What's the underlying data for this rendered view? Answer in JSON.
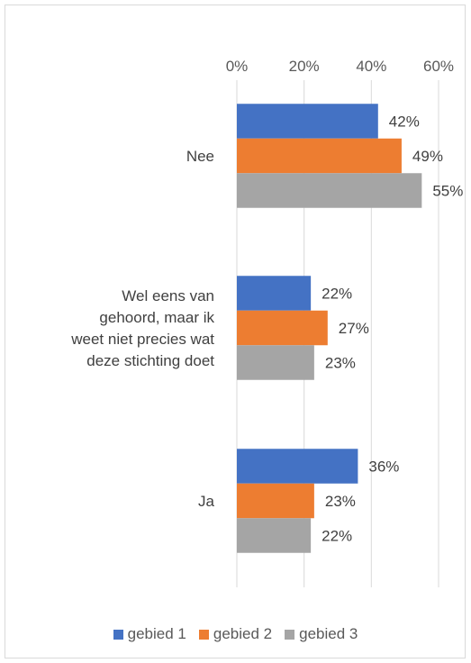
{
  "chart_data": {
    "type": "bar",
    "orientation": "horizontal",
    "categories": [
      "Nee",
      "Wel eens van gehoord, maar ik weet niet precies wat deze stichting doet",
      "Ja"
    ],
    "category_label_lines": [
      [
        "Nee"
      ],
      [
        "Wel eens van",
        "gehoord, maar ik",
        "weet niet precies wat",
        "deze stichting doet"
      ],
      [
        "Ja"
      ]
    ],
    "series": [
      {
        "name": "gebied 1",
        "color": "#4472c4",
        "values": [
          42,
          22,
          36
        ]
      },
      {
        "name": "gebied 2",
        "color": "#ed7d31",
        "values": [
          49,
          27,
          23
        ]
      },
      {
        "name": "gebied 3",
        "color": "#a5a5a5",
        "values": [
          55,
          23,
          22
        ]
      }
    ],
    "value_unit": "%",
    "xlim": [
      0,
      60
    ],
    "ticks": [
      0,
      20,
      40,
      60
    ],
    "tick_labels": [
      "0%",
      "20%",
      "40%",
      "60%"
    ],
    "axis_position": "top",
    "grid": true,
    "data_labels": true,
    "legend_position": "bottom",
    "title": "",
    "xlabel": "",
    "ylabel": ""
  }
}
